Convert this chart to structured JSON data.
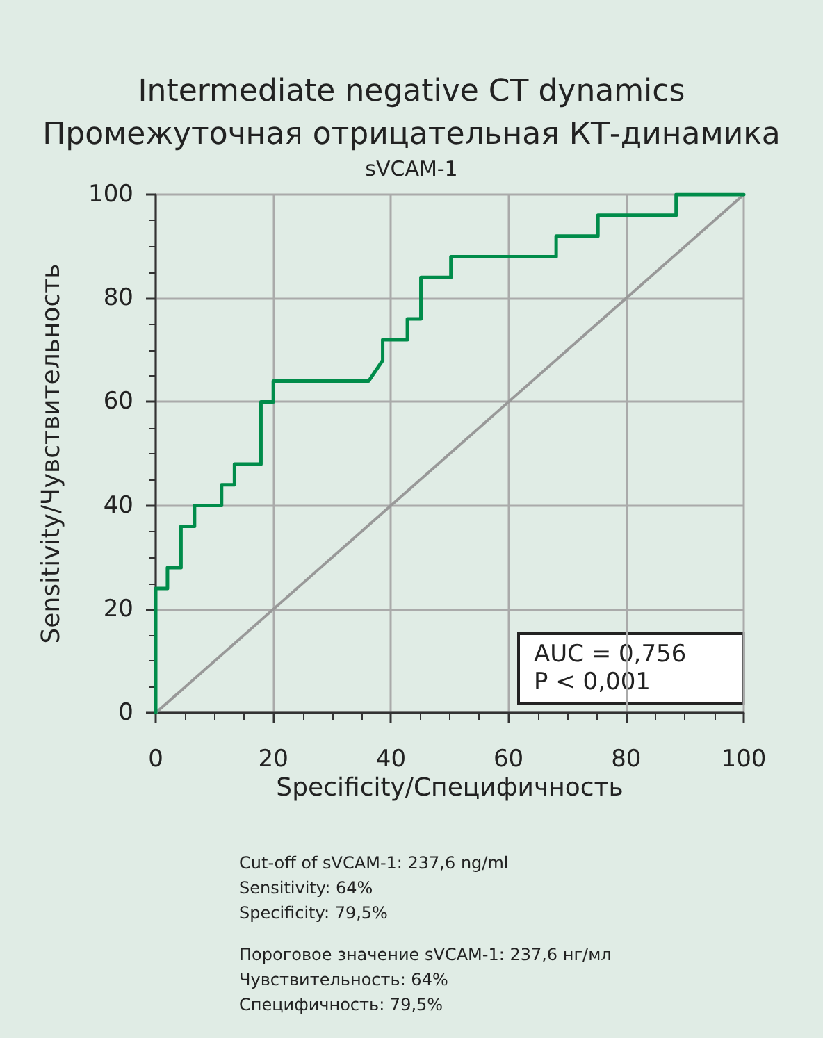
{
  "chart_data": {
    "type": "line",
    "title": "Intermediate negative CT dynamics",
    "subtitle": "Промежуточная отрицательная КТ-динамика",
    "xlabel": "Specificity/Специфичность",
    "ylabel": "Sensitivity/Чувствительность",
    "annotations": [
      "sVCAM-1",
      "AUC = 0,756\nP < 0,001",
      "Cut-off of sVCAM-1: 237,6 ng/ml\nSensitivity: 64%\nSpecificity: 79,5%",
      "Пороговое значение sVCAM-1: 237,6 нг/мл\nЧувствительность: 64%\nСпецифичность: 79,5%"
    ],
    "series": [
      {
        "color": "#008c4a",
        "x": [
          0,
          0,
          2,
          2,
          4.3,
          4.3,
          6.6,
          6.6,
          11.2,
          11.2,
          13.4,
          13.4,
          17.9,
          17.9,
          20,
          20,
          36.2,
          38.6,
          38.6,
          42.8,
          42.8,
          45.1,
          45.1,
          50.2,
          50.2,
          68.1,
          68.1,
          75.2,
          75.2,
          88.5,
          88.5,
          100
        ],
        "values": [
          0,
          24,
          24,
          28,
          28,
          36,
          36,
          40,
          40,
          44,
          44,
          48,
          48,
          60,
          60,
          64,
          64,
          68,
          72,
          72,
          76,
          76,
          84,
          84,
          88,
          88,
          92,
          92,
          96,
          96,
          100,
          100
        ]
      },
      {
        "color": "#999999",
        "x": [
          0,
          100
        ],
        "values": [
          0,
          100
        ]
      }
    ],
    "xlim": [
      0,
      100
    ],
    "xticks": [
      0,
      20,
      40,
      60,
      80,
      100
    ],
    "ylim": [
      0,
      100
    ],
    "yticks": [
      0,
      20,
      40,
      60,
      80,
      100
    ],
    "grid": true,
    "marker": "none",
    "line_style": "solid"
  }
}
